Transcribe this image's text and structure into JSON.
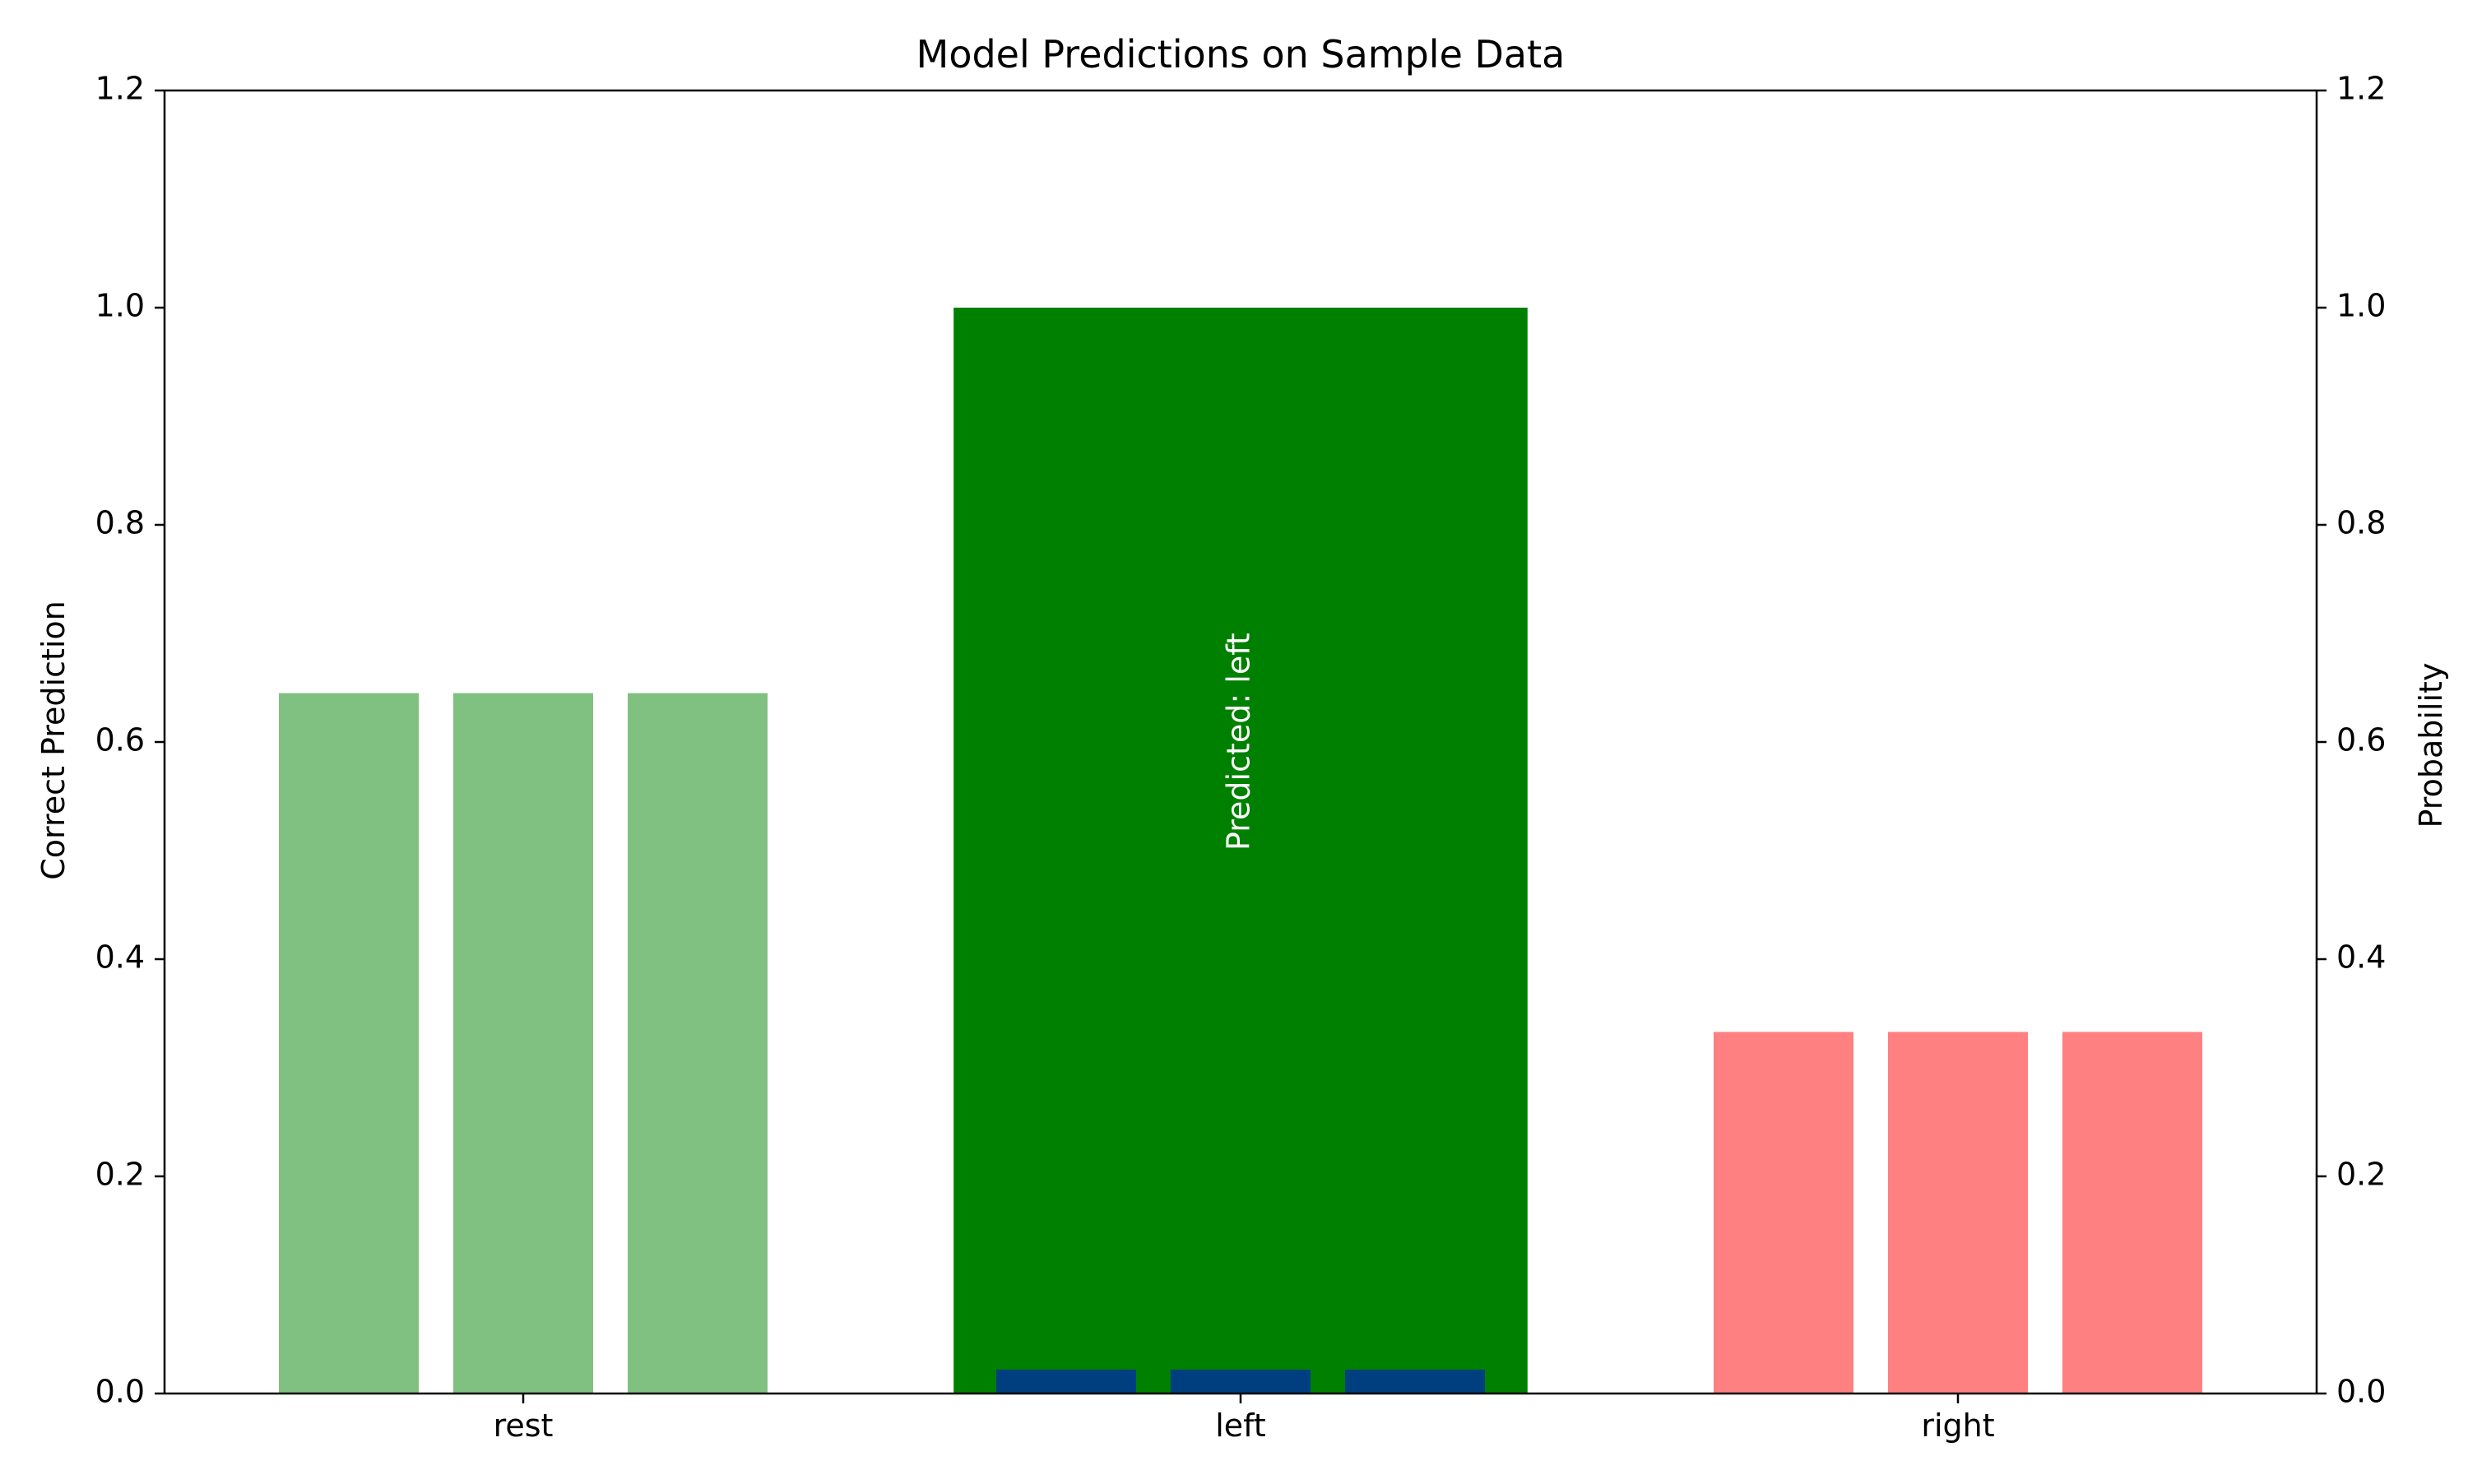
{
  "chart_data": {
    "type": "bar",
    "title": "Model Predictions on Sample Data",
    "ylabel": "Correct Prediction",
    "ylabel_right": "Probability",
    "ylim": [
      0,
      1.2
    ],
    "ylim_right": [
      0,
      1.2
    ],
    "yticks": [
      "0.0",
      "0.2",
      "0.4",
      "0.6",
      "0.8",
      "1.0",
      "1.2"
    ],
    "yticks_right": [
      "0.0",
      "0.2",
      "0.4",
      "0.6",
      "0.8",
      "1.0",
      "1.2"
    ],
    "categories": [
      "rest",
      "left",
      "right"
    ],
    "correct_prediction": [
      0,
      1,
      0
    ],
    "predicted_label": "left",
    "annotation": "Predicted: left",
    "probabilities": [
      {
        "category": "rest",
        "values": [
          0.645,
          0.645,
          0.645
        ],
        "color": "#80c080"
      },
      {
        "category": "left",
        "values": [
          0.022,
          0.022,
          0.022
        ],
        "color": "#003f7f"
      },
      {
        "category": "right",
        "values": [
          0.333,
          0.333,
          0.333
        ],
        "color": "#ff8080"
      }
    ],
    "colors": {
      "correct_bar": "#008000",
      "axis": "#000000"
    },
    "grid": false,
    "legend": "none"
  }
}
